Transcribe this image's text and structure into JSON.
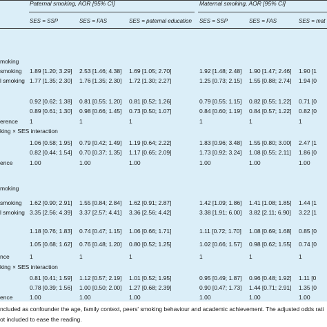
{
  "header": {
    "paternal_group": "Paternal smoking, AOR [95% CI]",
    "maternal_group": "Maternal smoking, AOR [95% CI]",
    "columns": [
      "SES = SSP",
      "SES = FAS",
      "SES = paternal education",
      "SES = SSP",
      "SES = FAS",
      "SES = mat"
    ]
  },
  "rows": [
    {
      "label": "moking",
      "cells": [
        "",
        "",
        "",
        "",
        "",
        ""
      ]
    },
    {
      "label": "smoking",
      "cells": [
        "1.89 [1.20; 3.29]",
        "2.53 [1.46; 4.38]",
        "1.69 [1.05; 2.70]",
        "1.92 [1.48; 2.48]",
        "1.90 [1.47; 2.46]",
        "1.90 [1"
      ]
    },
    {
      "label": "l smoking",
      "cells": [
        "1.77 [1.35; 2.30]",
        "1.76 [1.35; 2.30]",
        "1.72 [1.30; 2.27]",
        "1.25 [0.73; 2.15]",
        "1.55 [0.88; 2.74]",
        "1.94 [0"
      ]
    },
    {
      "label": "",
      "cells": [
        "0.92 [0.62; 1.38]",
        "0.81 [0.55; 1.20]",
        "0.81 [0.52; 1.26]",
        "0.79 [0.55; 1.15]",
        "0.82 [0.55; 1.22]",
        "0.71 [0"
      ]
    },
    {
      "label": "",
      "cells": [
        "0.89 [0.61; 1.30]",
        "0.98 [0.66; 1.45]",
        "0.73 [0.50; 1.07]",
        "0.84 [0.60; 1.19]",
        "0.84 [0.57; 1.22]",
        "0.82 [0"
      ]
    },
    {
      "label": "erence",
      "cells": [
        "1",
        "1",
        "1",
        "1",
        "1",
        "1"
      ]
    },
    {
      "label": "king × SES interaction",
      "cells": [
        "",
        "",
        "",
        "",
        "",
        ""
      ]
    },
    {
      "label": "",
      "cells": [
        "1.06 [0.58; 1.95]",
        "0.79 [0.42; 1.49]",
        "1.19 [0.64; 2.22]",
        "1.83 [0.96; 3.48]",
        "1.55 [0.80; 3.00]",
        "2.47 [1"
      ]
    },
    {
      "label": "",
      "cells": [
        "0.82 [0.44; 1.54]",
        "0.70 [0.37; 1.35]",
        "1.17 [0.65; 2.09]",
        "1.73 [0.92; 3.24]",
        "1.08 [0.55; 2.11]",
        "1.86 [0"
      ]
    },
    {
      "label": "ence",
      "cells": [
        "1.00",
        "1.00",
        "1.00",
        "1.00",
        "1.00",
        "1.00"
      ]
    },
    {
      "label": "moking",
      "cells": [
        "",
        "",
        "",
        "",
        "",
        ""
      ]
    },
    {
      "label": "smoking",
      "cells": [
        "1.62 [0.90; 2.91]",
        "1.55 [0.84; 2.84]",
        "1.62 [0.91; 2.87]",
        "1.42 [1.09; 1.86]",
        "1.41 [1.08; 1.85]",
        "1.44 [1"
      ]
    },
    {
      "label": "l smoking",
      "cells": [
        "3.35 [2.56; 4.39]",
        "3.37 [2.57; 4.41]",
        "3.36 [2.56; 4.42]",
        "3.38 [1.91; 6.00]",
        "3.82 [2.11; 6.90]",
        "3.22 [1"
      ]
    },
    {
      "label": "",
      "cells": [
        "1.18 [0.76; 1.83]",
        "0.74 [0.47; 1.15]",
        "1.06 [0.66; 1.71]",
        "1.11 [0.72; 1.70]",
        "1.08 [0.69; 1.68]",
        "0.85 [0"
      ]
    },
    {
      "label": "",
      "cells": [
        "1.05 [0.68; 1.62]",
        "0.76 [0.48; 1.20]",
        "0.80 [0.52; 1.25]",
        "1.02 [0.66; 1.57]",
        "0.98 [0.62; 1.55]",
        "0.74 [0"
      ]
    },
    {
      "label": "nce",
      "cells": [
        "1",
        "1",
        "1",
        "1",
        "1",
        "1"
      ]
    },
    {
      "label": "king × SES interaction",
      "cells": [
        "",
        "",
        "",
        "",
        "",
        ""
      ]
    },
    {
      "label": "",
      "cells": [
        "0.81 [0.41; 1.59]",
        "1.12 [0.57; 2.19]",
        "1.01 [0.52; 1.95]",
        "0.95 [0.49; 1.87]",
        "0.96 [0.48; 1.92]",
        "1.11 [0"
      ]
    },
    {
      "label": "",
      "cells": [
        "0.78 [0.39; 1.56]",
        "1.00 [0.50; 2.00]",
        "1.27 [0.68; 2.39]",
        "0.90 [0.47; 1.73]",
        "1.44 [0.71; 2.91]",
        "1.35 [0"
      ]
    },
    {
      "label": "ence",
      "cells": [
        "1.00",
        "1.00",
        "1.00",
        "1.00",
        "1.00",
        "1.00"
      ]
    }
  ],
  "footnotes": [
    "ncluded as confounder the age, family context, peers' smoking behaviour and academic achievement. The adjusted odds rati",
    "ot included to ease the reading."
  ]
}
